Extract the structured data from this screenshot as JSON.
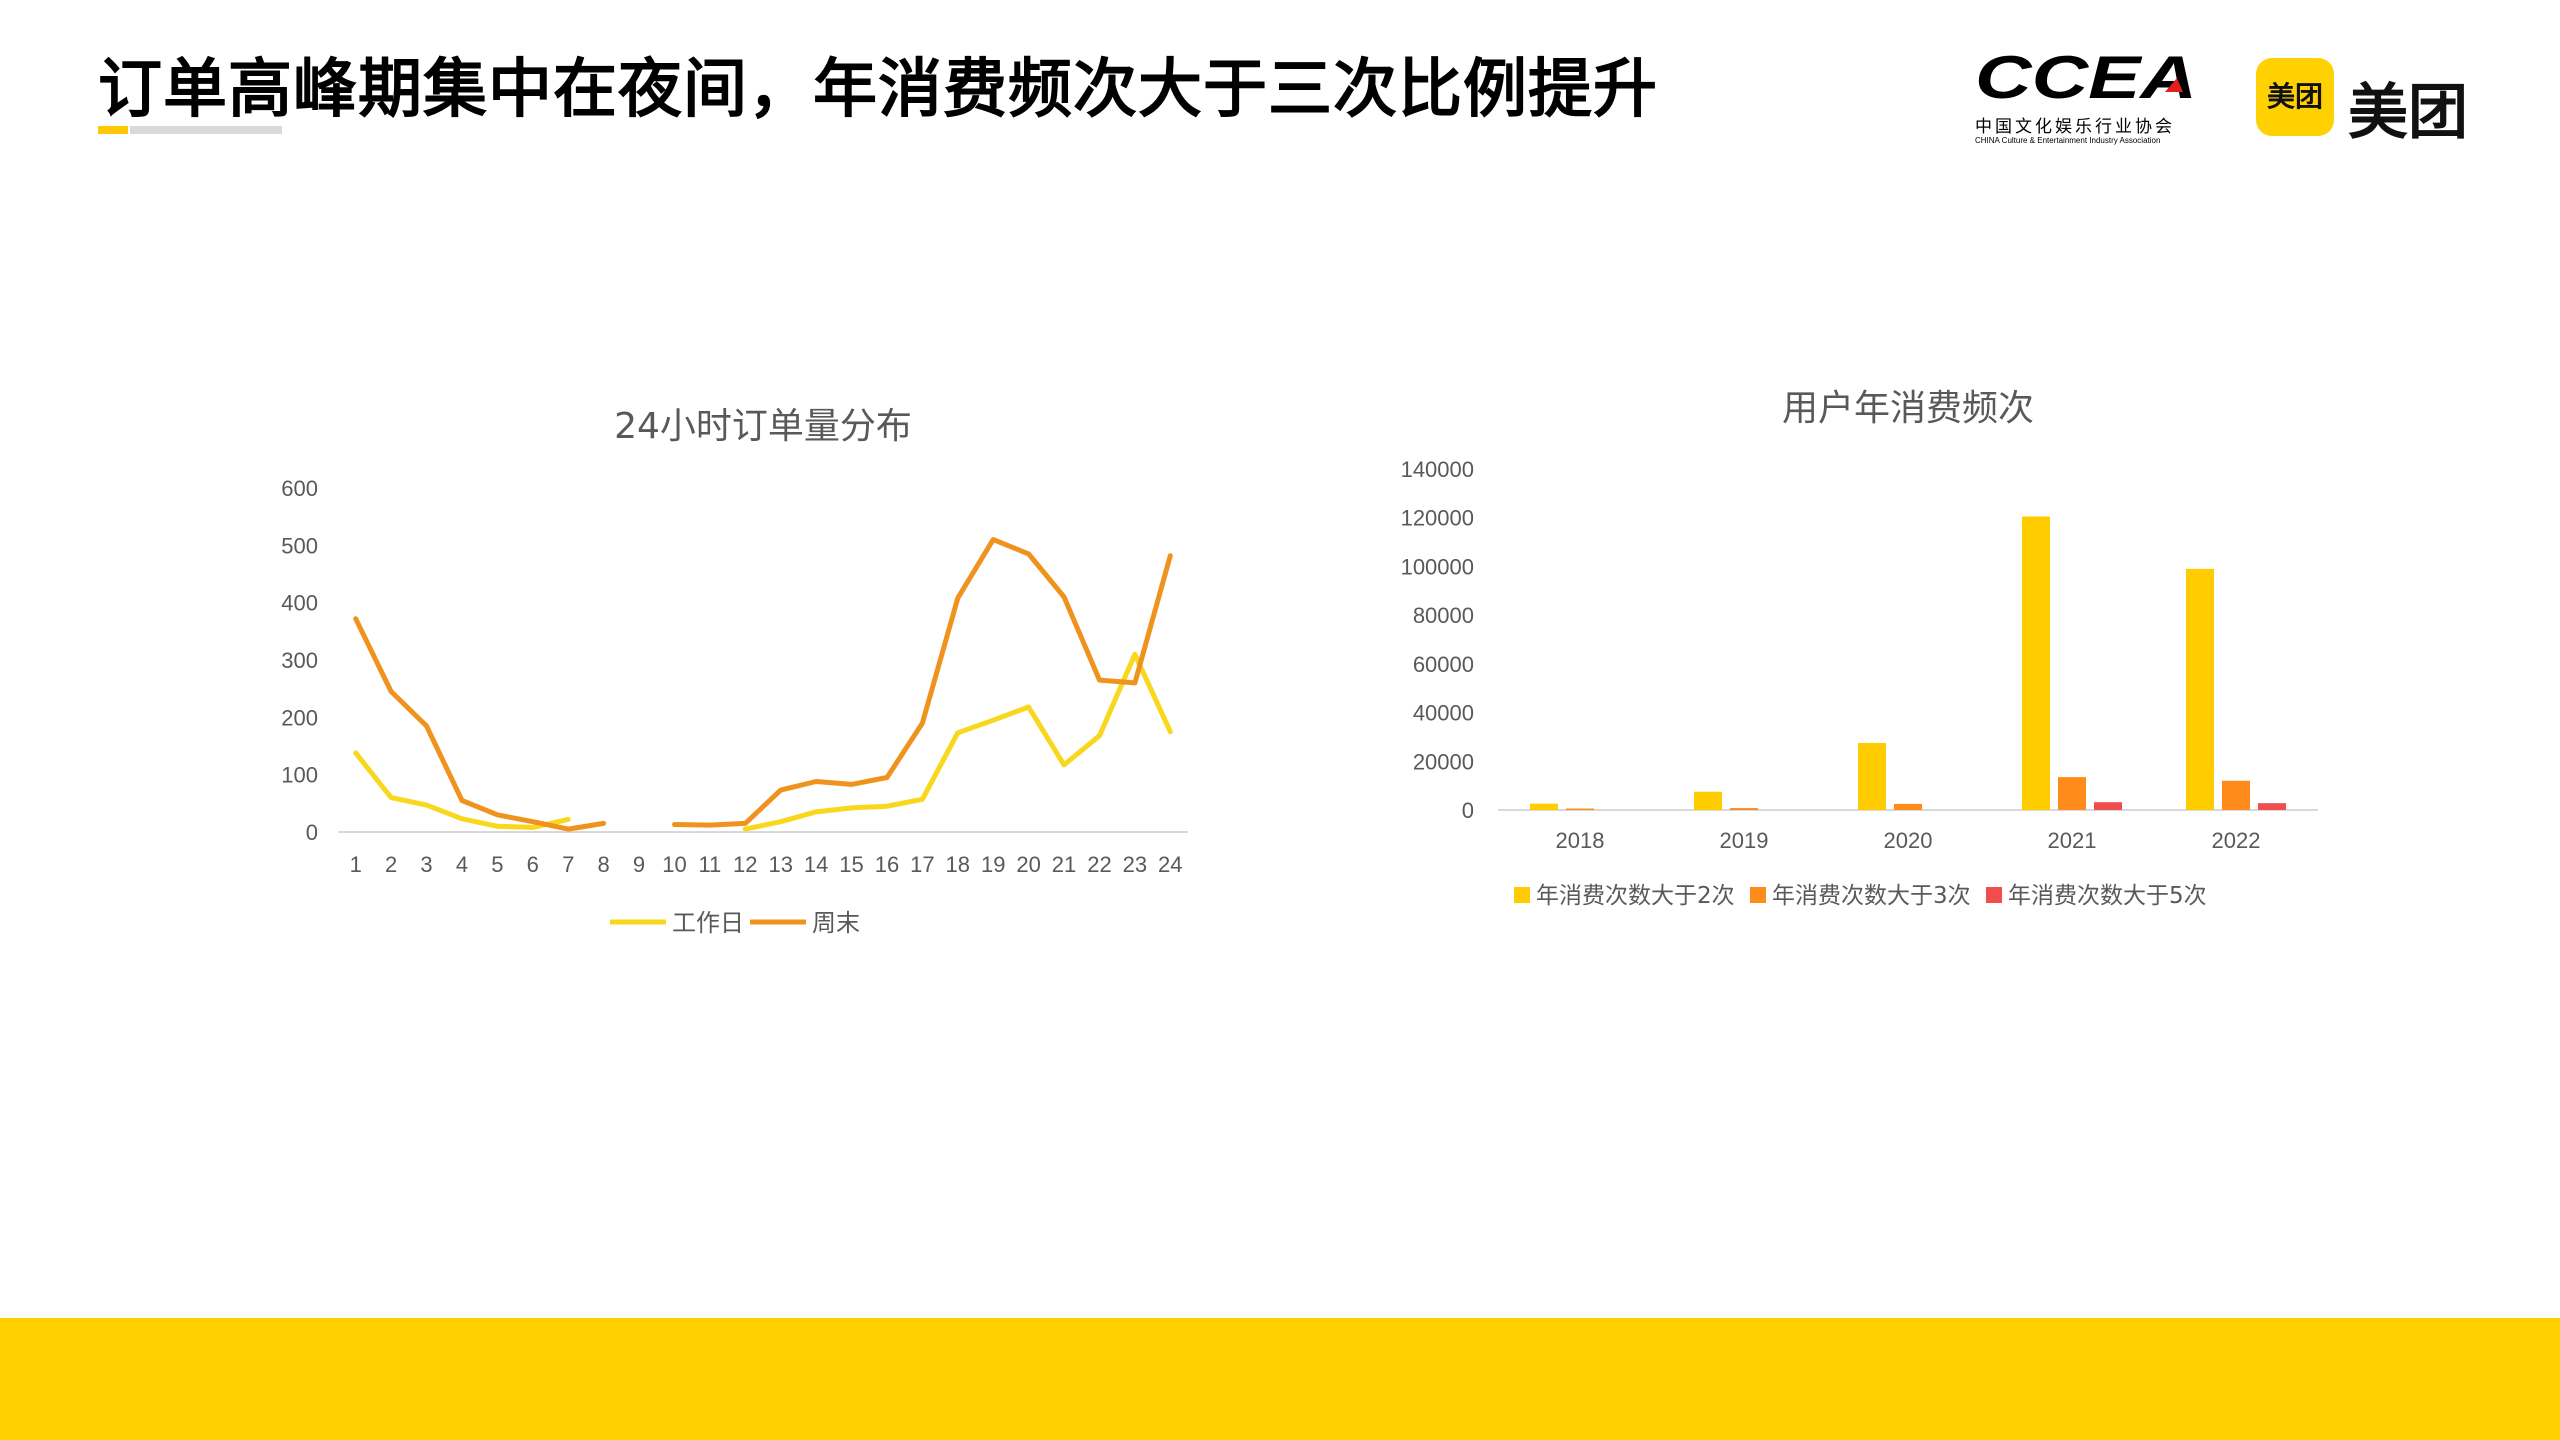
{
  "page": {
    "title": "订单高峰期集中在夜间，年消费频次大于三次比例提升",
    "accent_color": "#FFC800",
    "footer_color": "#FFCF00"
  },
  "logos": {
    "ccea": {
      "wordmark": "CCEA",
      "cn": "中国文化娱乐行业协会",
      "en": "CHINA Culture & Entertainment Industry Association"
    },
    "meituan": {
      "badge": "美团",
      "wordmark": "美团",
      "color": "#FFD100"
    }
  },
  "chart_data": [
    {
      "type": "line",
      "title": "24小时订单量分布",
      "x": [
        1,
        2,
        3,
        4,
        5,
        6,
        7,
        8,
        9,
        10,
        11,
        12,
        13,
        14,
        15,
        16,
        17,
        18,
        19,
        20,
        21,
        22,
        23,
        24
      ],
      "categories": [
        "1",
        "2",
        "3",
        "4",
        "5",
        "6",
        "7",
        "8",
        "9",
        "10",
        "11",
        "12",
        "13",
        "14",
        "15",
        "16",
        "17",
        "18",
        "19",
        "20",
        "21",
        "22",
        "23",
        "24"
      ],
      "yticks": [
        "0",
        "100",
        "200",
        "300",
        "400",
        "500",
        "600"
      ],
      "ylim": [
        0,
        600
      ],
      "grid": false,
      "legend_position": "bottom",
      "series": [
        {
          "name": "工作日",
          "color": "#F9D71C",
          "values": [
            138,
            60,
            47,
            23,
            10,
            8,
            22,
            null,
            null,
            null,
            null,
            5,
            18,
            35,
            42,
            45,
            57,
            173,
            195,
            218,
            117,
            168,
            310,
            175
          ]
        },
        {
          "name": "周末",
          "color": "#F0931E",
          "values": [
            372,
            245,
            185,
            55,
            30,
            18,
            5,
            15,
            null,
            13,
            12,
            15,
            73,
            88,
            83,
            95,
            190,
            408,
            510,
            485,
            410,
            265,
            260,
            482
          ]
        }
      ]
    },
    {
      "type": "bar",
      "title": "用户年消费频次",
      "categories": [
        "2018",
        "2019",
        "2020",
        "2021",
        "2022"
      ],
      "yticks": [
        "0",
        "20000",
        "40000",
        "60000",
        "80000",
        "100000",
        "120000",
        "140000"
      ],
      "ylim": [
        0,
        140000
      ],
      "grid": false,
      "legend_position": "bottom",
      "series": [
        {
          "name": "年消费次数大于2次",
          "color": "#FFCC00",
          "values": [
            2600,
            7500,
            27500,
            120500,
            99000
          ]
        },
        {
          "name": "年消费次数大于3次",
          "color": "#FF8C1A",
          "values": [
            600,
            800,
            2500,
            13500,
            12000
          ]
        },
        {
          "name": "年消费次数大于5次",
          "color": "#F04D4D",
          "values": [
            0,
            0,
            0,
            3200,
            2800
          ]
        }
      ]
    }
  ]
}
